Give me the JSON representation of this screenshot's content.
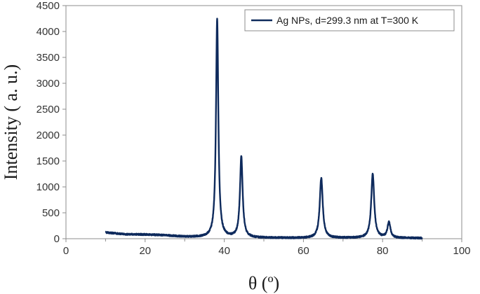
{
  "chart_data": {
    "type": "line",
    "title": "",
    "xlabel": "θ (º)",
    "ylabel": "Intensity ( a. u.)",
    "xlim": [
      0,
      100
    ],
    "ylim": [
      0,
      4500
    ],
    "x_ticks": [
      0,
      20,
      40,
      60,
      80,
      100
    ],
    "x_tick_labels": [
      "0",
      "20",
      "40",
      "60",
      "80",
      "100"
    ],
    "y_ticks": [
      0,
      500,
      1000,
      1500,
      2000,
      2500,
      3000,
      3500,
      4000,
      4500
    ],
    "y_tick_labels": [
      "0",
      "500",
      "1000",
      "1500",
      "2000",
      "2500",
      "3000",
      "3500",
      "4000",
      "4500"
    ],
    "grid": false,
    "legend_position": "top-right",
    "series": [
      {
        "name": "Ag NPs, d=299.3 nm at T=300 K",
        "color": "#0e2a5c",
        "x_range": [
          10,
          90
        ],
        "baseline": [
          [
            10,
            120
          ],
          [
            15,
            85
          ],
          [
            20,
            80
          ],
          [
            25,
            65
          ],
          [
            30,
            35
          ],
          [
            35,
            25
          ],
          [
            40,
            20
          ],
          [
            50,
            15
          ],
          [
            60,
            12
          ],
          [
            70,
            12
          ],
          [
            80,
            12
          ],
          [
            90,
            10
          ]
        ],
        "peaks": [
          {
            "x": 38.2,
            "y": 4250,
            "width": 0.35
          },
          {
            "x": 44.3,
            "y": 1580,
            "width": 0.4
          },
          {
            "x": 64.5,
            "y": 1170,
            "width": 0.45
          },
          {
            "x": 77.5,
            "y": 1250,
            "width": 0.45
          },
          {
            "x": 81.6,
            "y": 310,
            "width": 0.45
          }
        ]
      }
    ]
  }
}
